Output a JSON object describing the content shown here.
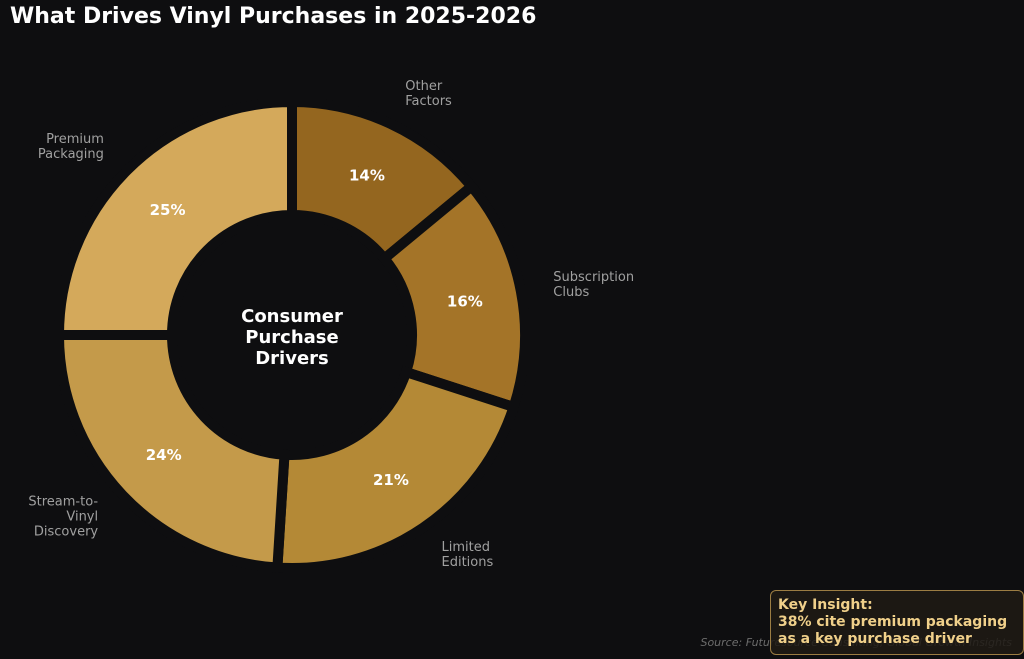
{
  "chart_data": {
    "type": "donut",
    "title": "What Drives Vinyl Purchases in 2025-2026",
    "center_label": "Consumer\nPurchase\nDrivers",
    "categories": [
      "Other\nFactors",
      "Subscription\nClubs",
      "Limited\nEditions",
      "Stream-to-Vinyl\nDiscovery",
      "Premium\nPackaging"
    ],
    "values": [
      14,
      16,
      21,
      24,
      25
    ],
    "value_labels": [
      "14%",
      "16%",
      "21%",
      "24%",
      "25%"
    ],
    "colors": [
      "#94661f",
      "#a47428",
      "#b48936",
      "#c49a4a",
      "#d4a95b"
    ],
    "annotation": "Key Insight:\n38% cite premium packaging\nas a key purchase driver",
    "source": "Source: Futuresource Consulting, Global Growth Insights"
  }
}
